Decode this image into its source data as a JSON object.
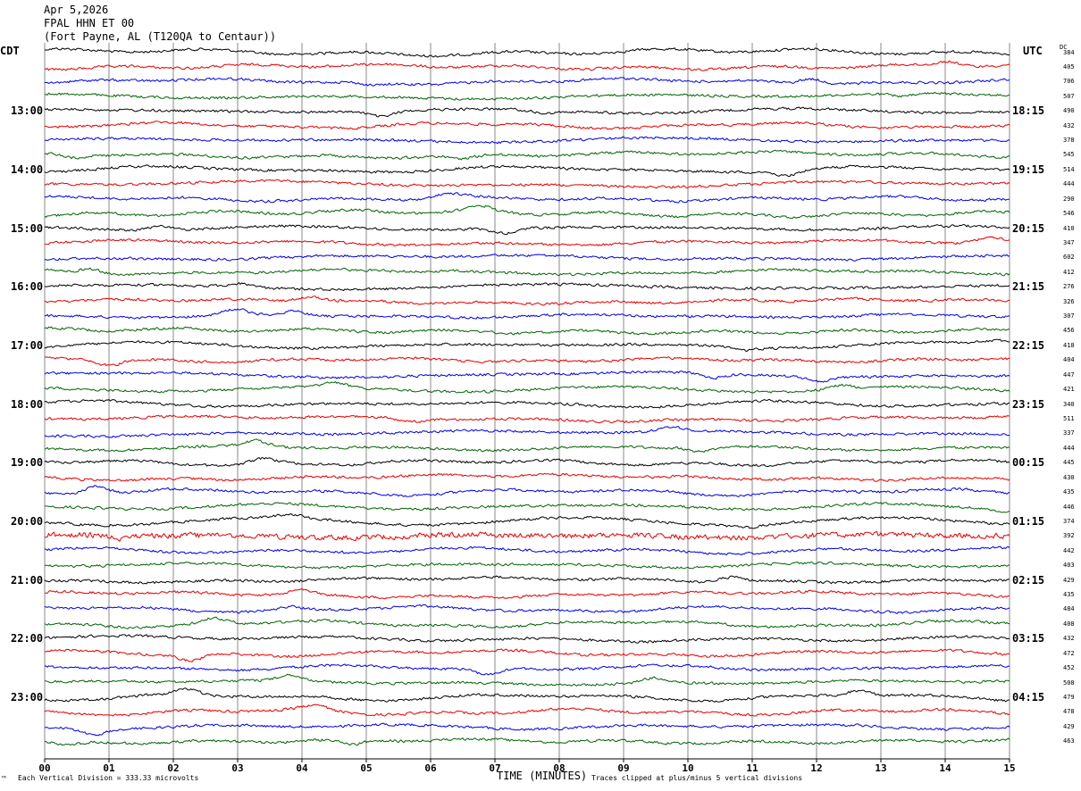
{
  "header": {
    "date": "Apr 5,2026",
    "station": "FPAL HHN ET 00",
    "location": "(Fort Payne, AL (T120QA to Centaur))"
  },
  "left_timezone": "CDT",
  "right_timezone": "UTC",
  "dc_label": "DC",
  "footer": {
    "scale_note": "Each Vertical Division = 333.33 microvolts",
    "clip_note": "Traces clipped at plus/minus 5 vertical divisions",
    "scale_mark": "™"
  },
  "colors": {
    "trace_cycle": [
      "#000000",
      "#e60000",
      "#0000e6",
      "#006400"
    ],
    "grid": "#888888",
    "background": "#ffffff"
  },
  "chart_data": {
    "type": "line",
    "xlabel": "TIME (MINUTES)",
    "ylabel": "",
    "xlim": [
      0,
      15
    ],
    "x_tick_labels": [
      "00",
      "01",
      "02",
      "03",
      "04",
      "05",
      "06",
      "07",
      "08",
      "09",
      "10",
      "11",
      "12",
      "13",
      "14",
      "15"
    ],
    "rows_per_hour": 4,
    "left_hour_labels": [
      {
        "row": 4,
        "label": "13:00"
      },
      {
        "row": 8,
        "label": "14:00"
      },
      {
        "row": 12,
        "label": "15:00"
      },
      {
        "row": 16,
        "label": "16:00"
      },
      {
        "row": 20,
        "label": "17:00"
      },
      {
        "row": 24,
        "label": "18:00"
      },
      {
        "row": 28,
        "label": "19:00"
      },
      {
        "row": 32,
        "label": "20:00"
      },
      {
        "row": 36,
        "label": "21:00"
      },
      {
        "row": 40,
        "label": "22:00"
      },
      {
        "row": 44,
        "label": "23:00"
      }
    ],
    "right_hour_labels": [
      {
        "row": 4,
        "label": "18:15"
      },
      {
        "row": 8,
        "label": "19:15"
      },
      {
        "row": 12,
        "label": "20:15"
      },
      {
        "row": 16,
        "label": "21:15"
      },
      {
        "row": 20,
        "label": "22:15"
      },
      {
        "row": 24,
        "label": "23:15"
      },
      {
        "row": 28,
        "label": "00:15"
      },
      {
        "row": 32,
        "label": "01:15"
      },
      {
        "row": 36,
        "label": "02:15"
      },
      {
        "row": 40,
        "label": "03:15"
      },
      {
        "row": 44,
        "label": "04:15"
      }
    ],
    "dc_offsets": [
      "384",
      "405",
      "706",
      "507",
      "490",
      "432",
      "378",
      "545",
      "514",
      "444",
      "290",
      "546",
      "410",
      "347",
      "602",
      "412",
      "276",
      "326",
      "307",
      "456",
      "418",
      "404",
      "447",
      "421",
      "340",
      "511",
      "337",
      "444",
      "445",
      "430",
      "435",
      "446",
      "374",
      "392",
      "442",
      "403",
      "429",
      "435",
      "484",
      "408",
      "432",
      "472",
      "452",
      "508",
      "479",
      "478",
      "429",
      "463"
    ],
    "series": [
      {
        "row": 12,
        "events": [
          [
            0.1,
            -10
          ]
        ]
      },
      {
        "row": 13,
        "events": [
          [
            0.3,
            -8
          ]
        ]
      }
    ]
  }
}
